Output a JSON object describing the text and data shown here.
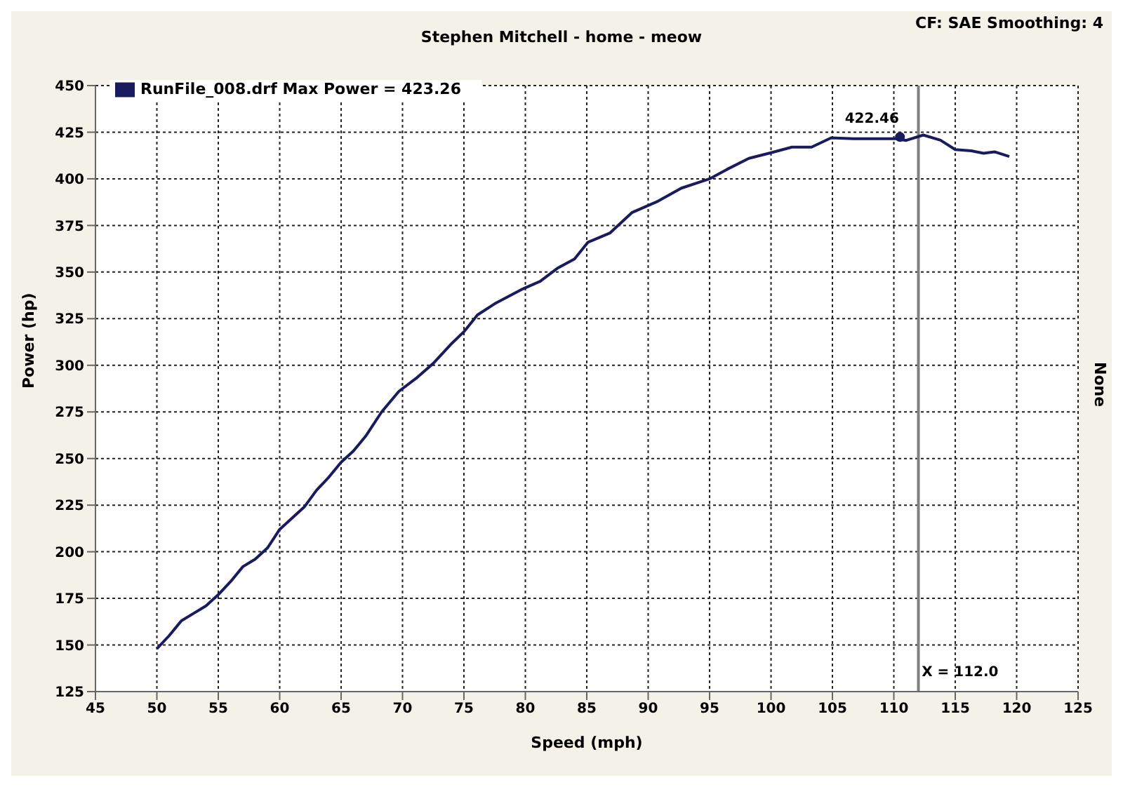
{
  "chart_data": {
    "type": "line",
    "title": "Stephen Mitchell - home - meow",
    "xlabel": "Speed (mph)",
    "ylabel": "Power (hp)",
    "y2label": "None",
    "annotations": [
      "CF: SAE Smoothing: 4",
      {
        "text": "422.46",
        "x": 110.5,
        "y": 422.46
      }
    ],
    "x": [
      50,
      51,
      52,
      53,
      54,
      55,
      56,
      57,
      58,
      59,
      60,
      61,
      62,
      63,
      64,
      65,
      66,
      67,
      68.3,
      69.7,
      71.1,
      72.5,
      73.9,
      75,
      76.1,
      77.5,
      79.8,
      81.2,
      82.6,
      84,
      85.1,
      86.9,
      88.7,
      90.8,
      92.7,
      95,
      96.4,
      98.2,
      100,
      101.7,
      103.3,
      104.9,
      106.7,
      108.8,
      110.2,
      111,
      112.4,
      113.8,
      115,
      116.3,
      117.3,
      118.2,
      119.4
    ],
    "series": [
      {
        "name": "RunFile_008.drf Max Power = 423.26",
        "color": "#1a1a5e",
        "values": [
          148,
          155,
          163,
          167,
          171,
          177,
          184,
          192,
          196,
          202,
          212,
          218,
          224,
          233,
          240,
          248,
          254,
          262,
          275,
          286,
          293,
          301,
          311,
          318,
          327,
          333,
          341,
          345,
          352,
          357,
          366,
          371,
          382,
          388,
          395,
          400,
          405,
          411,
          414,
          417,
          417,
          422,
          421.5,
          421.5,
          421.5,
          420.6,
          423.5,
          420.7,
          415.7,
          415,
          413.7,
          414.5,
          412
        ]
      }
    ],
    "xlim": [
      45,
      125
    ],
    "xticks": [
      45,
      50,
      55,
      60,
      65,
      70,
      75,
      80,
      85,
      90,
      95,
      100,
      105,
      110,
      115,
      120,
      125
    ],
    "ylim": [
      125,
      450
    ],
    "yticks": [
      125,
      150,
      175,
      200,
      225,
      250,
      275,
      300,
      325,
      350,
      375,
      400,
      425,
      450
    ],
    "ref_lines": [
      {
        "axis": "x",
        "value": 112.0,
        "label": "X = 112.0",
        "color": "#808080"
      }
    ],
    "grid": true,
    "legend": "top left",
    "marker": "none",
    "line_style": "solid"
  }
}
